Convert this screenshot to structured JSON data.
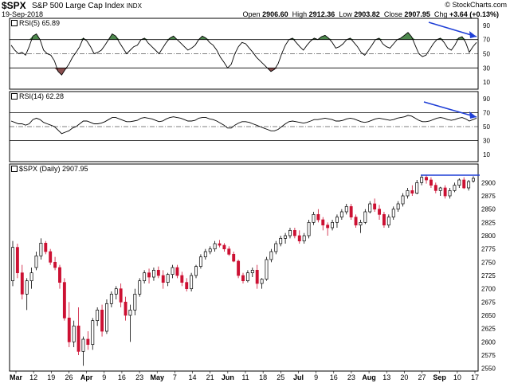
{
  "header": {
    "symbol": "$SPX",
    "name": "S&P 500 Large Cap Index",
    "exchange": "INDX",
    "date": "19-Sep-2018",
    "credit": "© StockCharts.com",
    "open_label": "Open",
    "open": "2906.60",
    "high_label": "High",
    "high": "2912.36",
    "low_label": "Low",
    "low": "2903.82",
    "close_label": "Close",
    "close": "2907.95",
    "chg_label": "Chg",
    "chg": "+3.64 (+0.13%)"
  },
  "panels": {
    "rsi5_label": "RSI(5) 65.89",
    "rsi14_label": "RSI(14) 62.28",
    "price_label": "$SPX (Daily) 2907.95"
  },
  "colors": {
    "up_candle": "#ffffff",
    "down_candle": "#cc1133",
    "overbought_fill": "#4f8a4f",
    "oversold_fill": "#8a4f4f",
    "trend_arrow": "#1f3fd6",
    "line": "#000000"
  },
  "chart_data": [
    {
      "type": "line",
      "series": [
        {
          "name": "RSI(5)",
          "values": [
            62,
            55,
            50,
            52,
            48,
            60,
            75,
            78,
            70,
            55,
            50,
            48,
            40,
            25,
            20,
            28,
            35,
            45,
            52,
            60,
            72,
            68,
            60,
            50,
            52,
            55,
            62,
            70,
            78,
            75,
            66,
            58,
            50,
            55,
            60,
            62,
            70,
            72,
            65,
            60,
            55,
            50,
            58,
            66,
            72,
            75,
            70,
            65,
            60,
            55,
            58,
            62,
            70,
            75,
            72,
            66,
            62,
            55,
            45,
            38,
            30,
            35,
            50,
            60,
            66,
            64,
            58,
            52,
            45,
            40,
            35,
            30,
            25,
            28,
            36,
            50,
            62,
            70,
            72,
            66,
            60,
            55,
            62,
            68,
            72,
            70,
            74,
            76,
            72,
            66,
            58,
            60,
            64,
            70,
            72,
            66,
            60,
            52,
            48,
            55,
            62,
            70,
            72,
            64,
            60,
            58,
            64,
            70,
            72,
            76,
            80,
            74,
            62,
            50,
            46,
            48,
            56,
            64,
            70,
            72,
            66,
            58,
            55,
            62,
            72,
            74,
            66,
            52,
            60,
            66
          ]
        }
      ],
      "ylim": [
        0,
        100
      ],
      "y_ticks": [
        10,
        30,
        50,
        70,
        90
      ],
      "overbought": 70,
      "oversold": 30
    },
    {
      "type": "line",
      "series": [
        {
          "name": "RSI(14)",
          "values": [
            58,
            56,
            54,
            54,
            52,
            54,
            60,
            62,
            60,
            56,
            54,
            52,
            50,
            45,
            40,
            42,
            44,
            48,
            50,
            54,
            58,
            58,
            56,
            54,
            54,
            55,
            57,
            60,
            63,
            63,
            61,
            59,
            57,
            57,
            58,
            59,
            62,
            63,
            62,
            61,
            59,
            57,
            58,
            61,
            63,
            64,
            63,
            62,
            60,
            58,
            58,
            59,
            62,
            63,
            63,
            61,
            60,
            58,
            55,
            52,
            48,
            48,
            52,
            55,
            57,
            57,
            56,
            54,
            52,
            50,
            48,
            46,
            44,
            44,
            46,
            50,
            54,
            57,
            58,
            57,
            56,
            55,
            56,
            58,
            60,
            60,
            61,
            62,
            61,
            60,
            58,
            58,
            59,
            61,
            62,
            61,
            59,
            57,
            56,
            57,
            59,
            61,
            62,
            61,
            60,
            59,
            60,
            62,
            63,
            64,
            66,
            65,
            62,
            59,
            57,
            57,
            58,
            60,
            62,
            63,
            62,
            60,
            59,
            60,
            62,
            63,
            61,
            58,
            60,
            62
          ]
        }
      ],
      "ylim": [
        0,
        100
      ],
      "y_ticks": [
        10,
        30,
        50,
        70,
        90
      ],
      "overbought": 70,
      "oversold": 30
    },
    {
      "type": "candlestick",
      "title": "$SPX (Daily) 2907.95",
      "ylim": [
        2545,
        2935
      ],
      "y_ticks": [
        2550,
        2575,
        2600,
        2625,
        2650,
        2675,
        2700,
        2725,
        2750,
        2775,
        2800,
        2825,
        2850,
        2875,
        2900
      ],
      "x_labels": [
        "Mar",
        "12",
        "19",
        "26",
        "Apr",
        "9",
        "16",
        "23",
        "May",
        "7",
        "14",
        "21",
        "Jun",
        "11",
        "18",
        "25",
        "Jul",
        "9",
        "16",
        "23",
        "Aug",
        "13",
        "20",
        "27",
        "Sep",
        "10",
        "17"
      ],
      "x_month_labels": [
        "Mar",
        "Apr",
        "May",
        "Jun",
        "Jul",
        "Aug",
        "Sep"
      ],
      "ohlc": [
        [
          2715,
          2790,
          2705,
          2778
        ],
        [
          2778,
          2785,
          2720,
          2730
        ],
        [
          2730,
          2745,
          2680,
          2690
        ],
        [
          2690,
          2720,
          2660,
          2715
        ],
        [
          2715,
          2740,
          2700,
          2730
        ],
        [
          2740,
          2770,
          2735,
          2762
        ],
        [
          2762,
          2795,
          2755,
          2786
        ],
        [
          2786,
          2790,
          2765,
          2770
        ],
        [
          2770,
          2775,
          2745,
          2750
        ],
        [
          2750,
          2760,
          2735,
          2740
        ],
        [
          2740,
          2745,
          2700,
          2712
        ],
        [
          2712,
          2720,
          2640,
          2645
        ],
        [
          2645,
          2675,
          2590,
          2600
        ],
        [
          2600,
          2640,
          2590,
          2630
        ],
        [
          2630,
          2665,
          2575,
          2582
        ],
        [
          2582,
          2610,
          2555,
          2605
        ],
        [
          2605,
          2620,
          2585,
          2595
        ],
        [
          2595,
          2645,
          2585,
          2640
        ],
        [
          2640,
          2665,
          2630,
          2660
        ],
        [
          2660,
          2670,
          2610,
          2620
        ],
        [
          2620,
          2680,
          2615,
          2672
        ],
        [
          2672,
          2695,
          2665,
          2690
        ],
        [
          2690,
          2705,
          2680,
          2700
        ],
        [
          2700,
          2710,
          2665,
          2675
        ],
        [
          2675,
          2685,
          2640,
          2650
        ],
        [
          2650,
          2670,
          2600,
          2660
        ],
        [
          2660,
          2700,
          2650,
          2690
        ],
        [
          2690,
          2720,
          2685,
          2715
        ],
        [
          2715,
          2735,
          2710,
          2730
        ],
        [
          2730,
          2738,
          2710,
          2722
        ],
        [
          2722,
          2740,
          2715,
          2735
        ],
        [
          2735,
          2742,
          2720,
          2725
        ],
        [
          2725,
          2735,
          2700,
          2712
        ],
        [
          2712,
          2730,
          2705,
          2727
        ],
        [
          2727,
          2745,
          2720,
          2740
        ],
        [
          2740,
          2745,
          2720,
          2725
        ],
        [
          2725,
          2732,
          2705,
          2712
        ],
        [
          2712,
          2720,
          2695,
          2700
        ],
        [
          2700,
          2730,
          2695,
          2725
        ],
        [
          2725,
          2745,
          2720,
          2742
        ],
        [
          2742,
          2765,
          2738,
          2760
        ],
        [
          2760,
          2775,
          2755,
          2770
        ],
        [
          2770,
          2780,
          2765,
          2775
        ],
        [
          2775,
          2790,
          2770,
          2785
        ],
        [
          2785,
          2792,
          2778,
          2782
        ],
        [
          2782,
          2786,
          2770,
          2775
        ],
        [
          2775,
          2780,
          2762,
          2765
        ],
        [
          2765,
          2770,
          2750,
          2752
        ],
        [
          2752,
          2755,
          2720,
          2725
        ],
        [
          2725,
          2730,
          2710,
          2715
        ],
        [
          2715,
          2735,
          2712,
          2730
        ],
        [
          2730,
          2740,
          2722,
          2735
        ],
        [
          2735,
          2745,
          2700,
          2710
        ],
        [
          2710,
          2720,
          2700,
          2718
        ],
        [
          2718,
          2760,
          2715,
          2755
        ],
        [
          2755,
          2775,
          2750,
          2770
        ],
        [
          2770,
          2790,
          2765,
          2785
        ],
        [
          2785,
          2800,
          2780,
          2795
        ],
        [
          2795,
          2805,
          2785,
          2800
        ],
        [
          2800,
          2815,
          2795,
          2810
        ],
        [
          2810,
          2815,
          2795,
          2800
        ],
        [
          2800,
          2810,
          2785,
          2790
        ],
        [
          2790,
          2805,
          2785,
          2800
        ],
        [
          2800,
          2830,
          2795,
          2825
        ],
        [
          2825,
          2845,
          2820,
          2840
        ],
        [
          2840,
          2850,
          2825,
          2830
        ],
        [
          2830,
          2835,
          2810,
          2820
        ],
        [
          2820,
          2825,
          2800,
          2815
        ],
        [
          2815,
          2830,
          2810,
          2825
        ],
        [
          2825,
          2840,
          2815,
          2835
        ],
        [
          2835,
          2850,
          2830,
          2845
        ],
        [
          2845,
          2860,
          2840,
          2855
        ],
        [
          2855,
          2860,
          2830,
          2835
        ],
        [
          2835,
          2840,
          2815,
          2820
        ],
        [
          2820,
          2830,
          2805,
          2825
        ],
        [
          2825,
          2850,
          2822,
          2845
        ],
        [
          2845,
          2865,
          2842,
          2860
        ],
        [
          2860,
          2870,
          2845,
          2850
        ],
        [
          2850,
          2858,
          2830,
          2840
        ],
        [
          2840,
          2845,
          2815,
          2820
        ],
        [
          2820,
          2840,
          2815,
          2835
        ],
        [
          2835,
          2855,
          2830,
          2850
        ],
        [
          2850,
          2865,
          2845,
          2860
        ],
        [
          2860,
          2880,
          2855,
          2875
        ],
        [
          2875,
          2890,
          2870,
          2885
        ],
        [
          2885,
          2895,
          2875,
          2880
        ],
        [
          2880,
          2905,
          2878,
          2900
        ],
        [
          2900,
          2915,
          2895,
          2910
        ],
        [
          2910,
          2915,
          2898,
          2905
        ],
        [
          2905,
          2910,
          2890,
          2895
        ],
        [
          2895,
          2900,
          2880,
          2885
        ],
        [
          2885,
          2892,
          2875,
          2890
        ],
        [
          2890,
          2895,
          2870,
          2875
        ],
        [
          2875,
          2890,
          2870,
          2885
        ],
        [
          2885,
          2900,
          2882,
          2895
        ],
        [
          2895,
          2908,
          2890,
          2905
        ],
        [
          2905,
          2910,
          2888,
          2890
        ],
        [
          2890,
          2905,
          2885,
          2902
        ],
        [
          2903,
          2912,
          2900,
          2908
        ]
      ]
    }
  ]
}
